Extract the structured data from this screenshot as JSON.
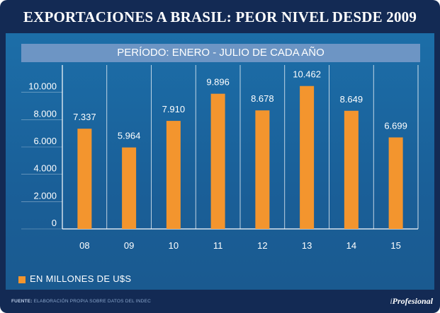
{
  "header": {
    "title": "EXPORTACIONES A BRASIL: PEOR NIVEL DESDE 2009",
    "subtitle": "PERÍODO: ENERO - JULIO DE CADA AÑO"
  },
  "legend": {
    "label": "EN MILLONES DE U$S"
  },
  "footer": {
    "source_label": "FUENTE:",
    "source_text": "ELABORACIÓN PROPIA SOBRE DATOS DEL INDEC",
    "logo_prefix": "i",
    "logo_text": "Profesional"
  },
  "colors": {
    "bar": "#f3952e",
    "grid": "#ffffff",
    "text": "#ffffff"
  },
  "chart_data": {
    "type": "bar",
    "title": "PERÍODO: ENERO - JULIO DE CADA AÑO",
    "categories": [
      "08",
      "09",
      "10",
      "11",
      "12",
      "13",
      "14",
      "15"
    ],
    "values": [
      7337,
      5964,
      7910,
      9896,
      8678,
      10462,
      8649,
      6699
    ],
    "value_labels": [
      "7.337",
      "5.964",
      "7.910",
      "9.896",
      "8.678",
      "10.462",
      "8.649",
      "6.699"
    ],
    "yticks": [
      0,
      2000,
      4000,
      6000,
      8000,
      10000
    ],
    "ytick_labels": [
      "0",
      "2.000",
      "4.000",
      "6.000",
      "8.000",
      "10.000"
    ],
    "ylim": [
      0,
      12000
    ],
    "series_name": "EN MILLONES DE U$S",
    "xlabel": "",
    "ylabel": ""
  }
}
